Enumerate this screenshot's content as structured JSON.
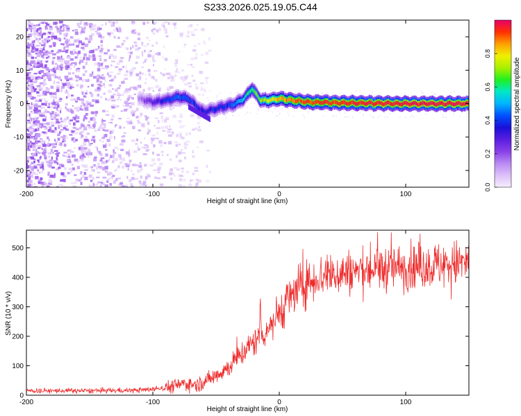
{
  "title": "S233.2026.025.19.05.C44",
  "chart_data": [
    {
      "type": "heatmap",
      "name": "spectrogram",
      "xlabel": "Height of straight line (km)",
      "ylabel": "Frequency (Hz)",
      "xlim": [
        -200,
        150
      ],
      "ylim": [
        -25,
        25
      ],
      "xticks": [
        -200,
        -100,
        0,
        100
      ],
      "yticks": [
        -20,
        -10,
        0,
        10,
        20
      ],
      "colorbar": {
        "label": "Normalized spectral amplitude",
        "range": [
          0,
          1
        ],
        "ticks": [
          0.0,
          0.2,
          0.4,
          0.6,
          0.8
        ],
        "colors": [
          "#f6eefd",
          "#dcc0f8",
          "#b98af2",
          "#8a3fe8",
          "#5a1de0",
          "#1a10d8",
          "#0050ff",
          "#00b4ff",
          "#00e8c8",
          "#20f020",
          "#a8f000",
          "#f0f000",
          "#ffa000",
          "#ff3000",
          "#e8006a"
        ]
      },
      "ridge": {
        "description_points_x": [
          -112,
          -100,
          -90,
          -80,
          -72,
          -65,
          -60,
          -55,
          -45,
          -35,
          -28,
          -22,
          -19,
          -15,
          -10,
          0,
          20,
          50,
          100,
          150
        ],
        "description_points_freq": [
          1.5,
          0.5,
          1.0,
          2.0,
          1.5,
          -1.0,
          -2.5,
          -2.0,
          -1.0,
          0.0,
          1.5,
          4.5,
          3.0,
          1.0,
          1.0,
          1.5,
          0.5,
          0.2,
          0.0,
          0.0
        ],
        "amplitude_x": [
          -112,
          -100,
          -80,
          -60,
          -40,
          -20,
          0,
          20,
          60,
          100,
          150
        ],
        "amplitude": [
          0.15,
          0.3,
          0.45,
          0.35,
          0.4,
          0.65,
          0.85,
          0.92,
          0.95,
          0.97,
          0.97
        ]
      }
    },
    {
      "type": "line",
      "name": "snr",
      "xlabel": "Height of straight line (km)",
      "ylabel": "SNR (10 * v/v)",
      "xlim": [
        -200,
        150
      ],
      "ylim": [
        0,
        560
      ],
      "xticks": [
        -200,
        -100,
        0,
        100
      ],
      "yticks": [
        0,
        100,
        200,
        300,
        400,
        500
      ],
      "color": "#ee2b2b",
      "trend_x": [
        -200,
        -150,
        -110,
        -90,
        -75,
        -65,
        -55,
        -40,
        -30,
        -20,
        -10,
        0,
        10,
        20,
        30,
        40,
        60,
        80,
        100,
        120,
        150
      ],
      "trend_y": [
        15,
        15,
        17,
        25,
        40,
        35,
        55,
        95,
        140,
        180,
        220,
        280,
        340,
        375,
        400,
        410,
        420,
        430,
        435,
        440,
        450
      ],
      "spikes_x": [
        -15
      ],
      "spikes_y": [
        350
      ]
    }
  ]
}
